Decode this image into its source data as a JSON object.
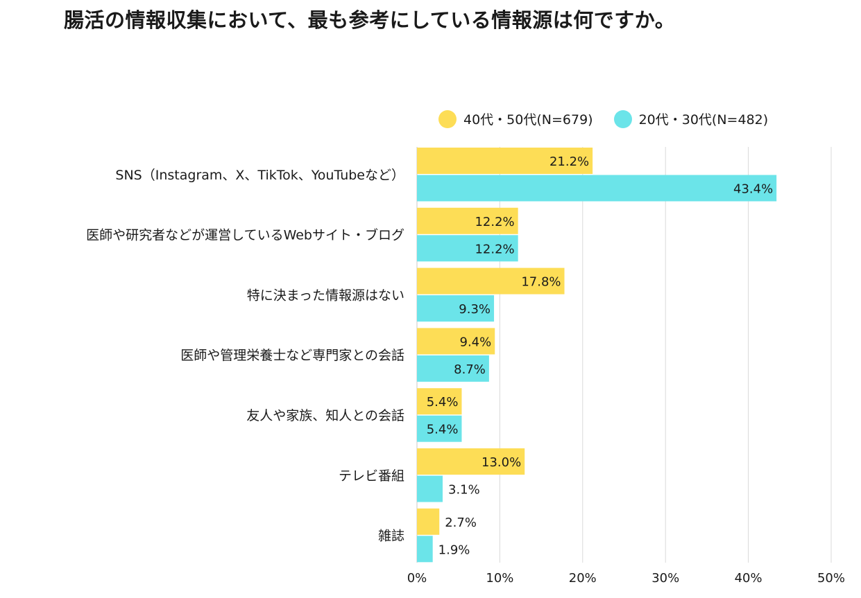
{
  "title": "腸活の情報収集において、最も参考にしている情報源は何ですか。",
  "colors": {
    "series1": "#FDDD56",
    "series2": "#6BE4E9",
    "grid": "#d9d9d9",
    "text": "#1a1a1a"
  },
  "chart_data": {
    "type": "bar",
    "orientation": "horizontal",
    "title": "腸活の情報収集において、最も参考にしている情報源は何ですか。",
    "categories": [
      "SNS（Instagram、X、TikTok、YouTubeなど）",
      "医師や研究者などが運営しているWebサイト・ブログ",
      "特に決まった情報源はない",
      "医師や管理栄養士など専門家との会話",
      "友人や家族、知人との会話",
      "テレビ番組",
      "雑誌"
    ],
    "series": [
      {
        "name": "40代・50代(N=679)",
        "values": [
          21.2,
          12.2,
          17.8,
          9.4,
          5.4,
          13.0,
          2.7
        ],
        "labels": [
          "21.2%",
          "12.2%",
          "17.8%",
          "9.4%",
          "5.4%",
          "13.0%",
          "2.7%"
        ]
      },
      {
        "name": "20代・30代(N=482)",
        "values": [
          43.4,
          12.2,
          9.3,
          8.7,
          5.4,
          3.1,
          1.9
        ],
        "labels": [
          "43.4%",
          "12.2%",
          "9.3%",
          "8.7%",
          "5.4%",
          "3.1%",
          "1.9%"
        ]
      }
    ],
    "xlim": [
      0,
      50
    ],
    "xticks": [
      "0%",
      "10%",
      "20%",
      "30%",
      "40%",
      "50%"
    ],
    "grid": true,
    "legend": "top-right"
  }
}
